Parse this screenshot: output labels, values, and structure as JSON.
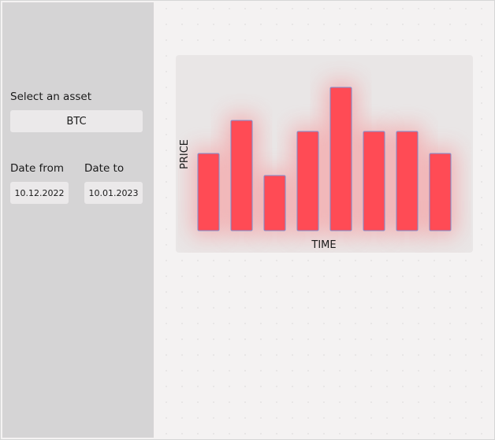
{
  "sidebar": {
    "asset_label": "Select an asset",
    "asset_value": "BTC",
    "date_from_label": "Date from",
    "date_from_value": "10.12.2022",
    "date_to_label": "Date to",
    "date_to_value": "10.01.2023"
  },
  "colors": {
    "bar": "#ff4b55",
    "bar_stroke": "#7a8fd0",
    "glow": "#ff6a70"
  },
  "chart_data": {
    "type": "bar",
    "xlabel": "TIME",
    "ylabel": "PRICE",
    "categories": [
      "",
      "",
      "",
      "",
      "",
      "",
      "",
      ""
    ],
    "values": [
      49,
      70,
      35,
      63,
      91,
      63,
      63,
      49
    ],
    "ylim": [
      0,
      100
    ]
  }
}
